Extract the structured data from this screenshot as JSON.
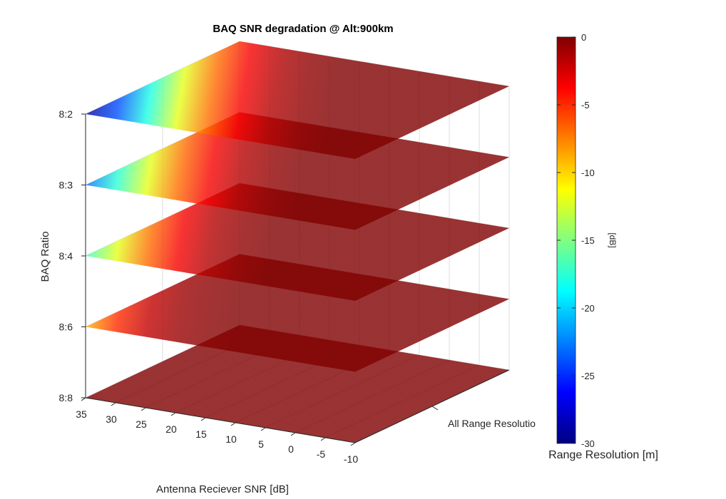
{
  "chart_data": {
    "type": "surface",
    "title": "BAQ SNR degradation @ Alt:900km",
    "xlabel": "Antenna Reciever SNR [dB]",
    "ylabel": "Range Resolution [m]",
    "zlabel": "BAQ Ratio",
    "x_ticks": [
      35,
      30,
      25,
      20,
      15,
      10,
      5,
      0,
      -5,
      -10
    ],
    "x_range": [
      -10,
      35
    ],
    "y_tick_labels": [
      "All Range Resolutio"
    ],
    "z_tick_labels": [
      "8:2",
      "8:3",
      "8:4",
      "8:6",
      "8:8"
    ],
    "grid": true,
    "colormap": "jet",
    "colorbar": {
      "label": "[dB]",
      "ticks": [
        0,
        -5,
        -10,
        -15,
        -20,
        -25,
        -30
      ],
      "range": [
        -30,
        0
      ]
    },
    "series": [
      {
        "name": "8:2",
        "x": [
          -10,
          -5,
          0,
          5,
          10,
          15,
          20,
          25,
          30,
          35
        ],
        "values": [
          0,
          0,
          -0.5,
          -1.5,
          -3.5,
          -7,
          -12,
          -18,
          -24,
          -29
        ]
      },
      {
        "name": "8:3",
        "x": [
          -10,
          -5,
          0,
          5,
          10,
          15,
          20,
          25,
          30,
          35
        ],
        "values": [
          0,
          0,
          0,
          -0.5,
          -1.5,
          -3.5,
          -7,
          -12,
          -17.5,
          -23
        ]
      },
      {
        "name": "8:4",
        "x": [
          -10,
          -5,
          0,
          5,
          10,
          15,
          20,
          25,
          30,
          35
        ],
        "values": [
          0,
          0,
          0,
          0,
          -0.5,
          -1.5,
          -3.5,
          -7,
          -12,
          -17
        ]
      },
      {
        "name": "8:6",
        "x": [
          -10,
          -5,
          0,
          5,
          10,
          15,
          20,
          25,
          30,
          35
        ],
        "values": [
          0,
          0,
          0,
          0,
          0,
          -0.3,
          -0.8,
          -2,
          -5,
          -9
        ]
      },
      {
        "name": "8:8",
        "x": [
          -10,
          -5,
          0,
          5,
          10,
          15,
          20,
          25,
          30,
          35
        ],
        "values": [
          0,
          0,
          0,
          0,
          0,
          0,
          0,
          0,
          0,
          0
        ]
      }
    ]
  }
}
